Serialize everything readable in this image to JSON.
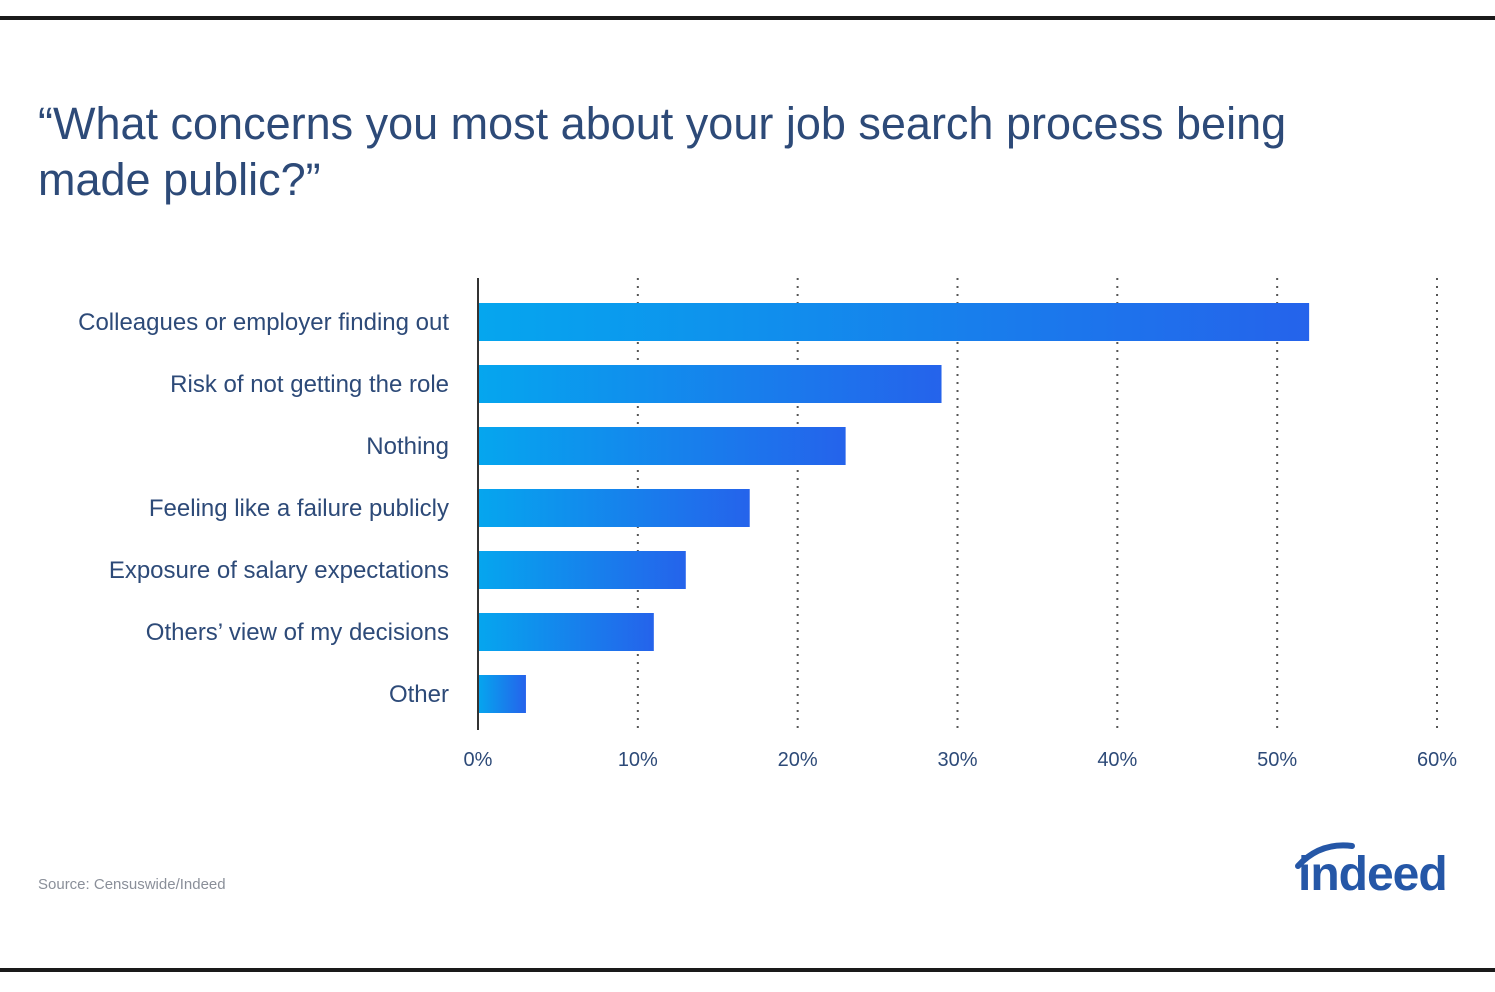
{
  "title": "“What concerns you most about your job search process being made public?”",
  "source": "Source: Censuswide/Indeed",
  "logo": {
    "text": "indeed",
    "color": "#2557a7"
  },
  "colors": {
    "bar_start": "#05a6ee",
    "bar_end": "#2563eb",
    "text": "#2d4a78",
    "grid": "#555555",
    "rule": "#1a1a1a"
  },
  "chart_data": {
    "type": "bar",
    "orientation": "horizontal",
    "categories": [
      "Colleagues or employer finding out",
      "Risk of not getting the role",
      "Nothing",
      "Feeling like a failure publicly",
      "Exposure of salary expectations",
      "Others’ view of my decisions",
      "Other"
    ],
    "values": [
      52,
      29,
      23,
      17,
      13,
      11,
      3
    ],
    "x_ticks": [
      0,
      10,
      20,
      30,
      40,
      50,
      60
    ],
    "x_tick_labels": [
      "0%",
      "10%",
      "20%",
      "30%",
      "40%",
      "50%",
      "60%"
    ],
    "xlim": [
      0,
      60
    ],
    "grid": "vertical dotted",
    "legend": "none"
  }
}
